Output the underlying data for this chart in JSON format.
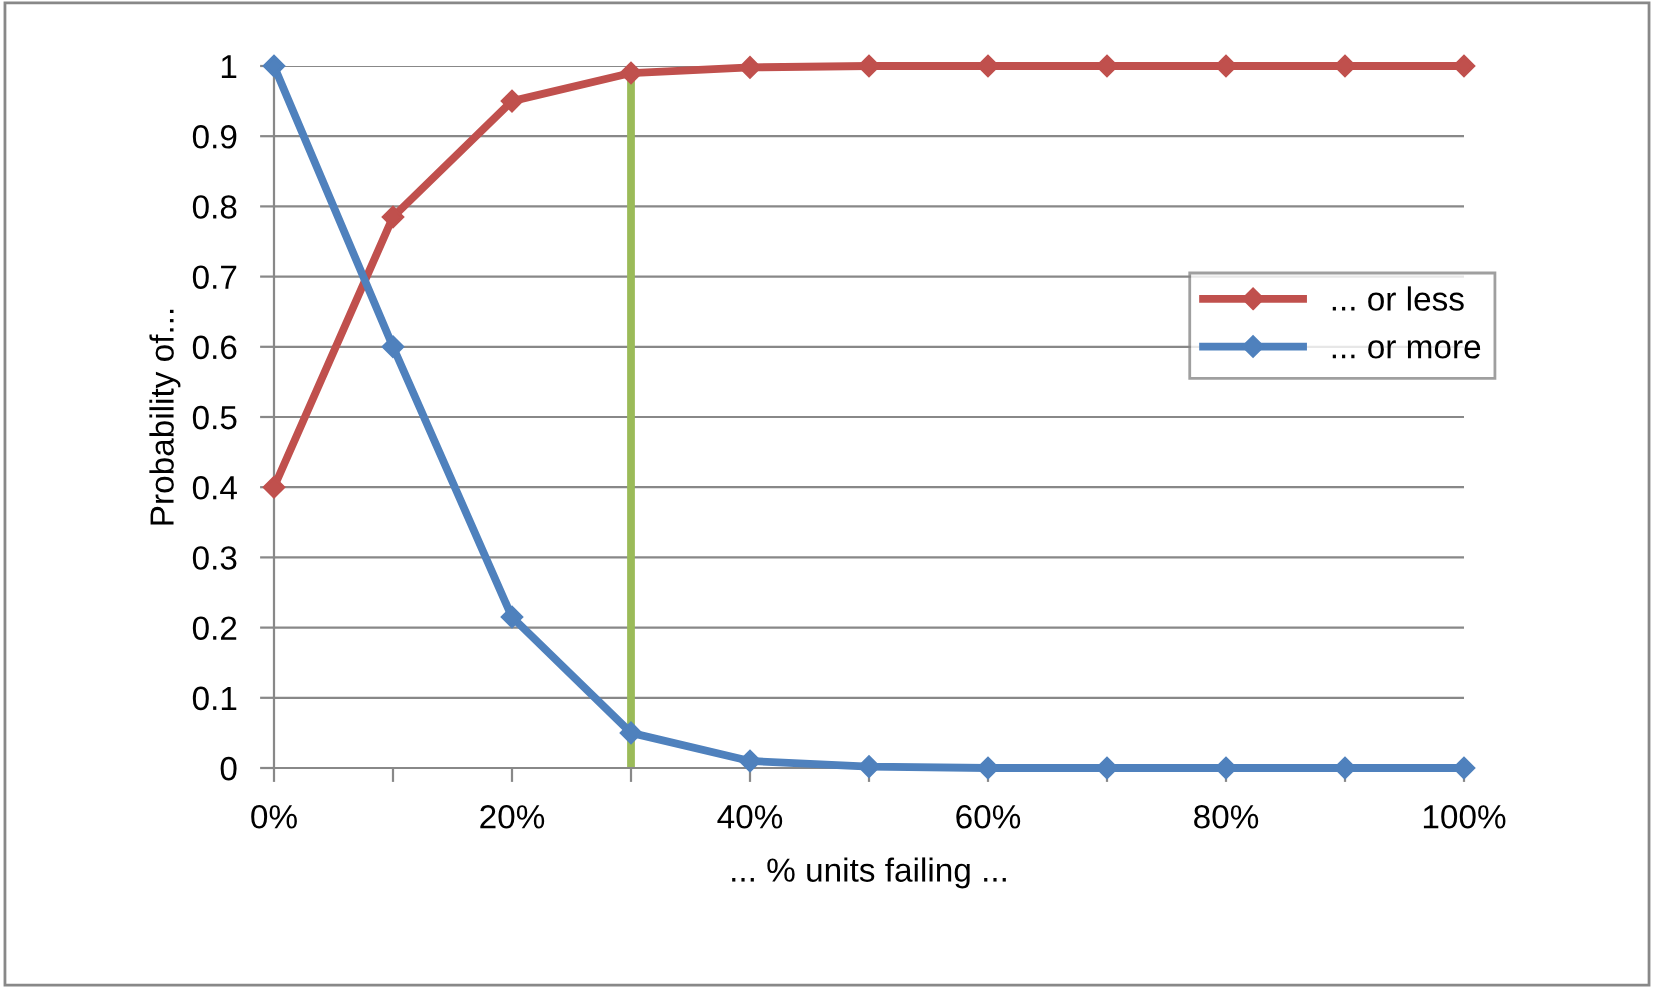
{
  "chart_data": {
    "type": "line",
    "xlabel": "... % units failing ...",
    "ylabel": "Probability of...",
    "x": [
      0,
      10,
      20,
      30,
      40,
      50,
      60,
      70,
      80,
      90,
      100
    ],
    "series": [
      {
        "name": "... or less",
        "color": "#c0504d",
        "values": [
          0.4,
          0.785,
          0.95,
          0.99,
          0.998,
          1,
          1,
          1,
          1,
          1,
          1
        ]
      },
      {
        "name": "... or more",
        "color": "#4f81bd",
        "values": [
          1,
          0.6,
          0.215,
          0.05,
          0.01,
          0.002,
          0,
          0,
          0,
          0,
          0
        ]
      }
    ],
    "xlim": [
      0,
      100
    ],
    "xticks": [
      {
        "value": 0,
        "label": "0%"
      },
      {
        "value": 10,
        "label": null
      },
      {
        "value": 20,
        "label": "20%"
      },
      {
        "value": 30,
        "label": null
      },
      {
        "value": 40,
        "label": "40%"
      },
      {
        "value": 50,
        "label": null
      },
      {
        "value": 60,
        "label": "60%"
      },
      {
        "value": 70,
        "label": null
      },
      {
        "value": 80,
        "label": "80%"
      },
      {
        "value": 90,
        "label": null
      },
      {
        "value": 100,
        "label": "100%"
      }
    ],
    "ylim": [
      0,
      1
    ],
    "yticks": [
      0,
      0.1,
      0.2,
      0.3,
      0.4,
      0.5,
      0.6,
      0.7,
      0.8,
      0.9,
      1
    ],
    "ref_lines": [
      {
        "axis": "x",
        "value": 30,
        "color": "#9bbb59"
      }
    ],
    "grid": "y",
    "legend": "right",
    "marker": "diamond",
    "line_style": "solid"
  }
}
